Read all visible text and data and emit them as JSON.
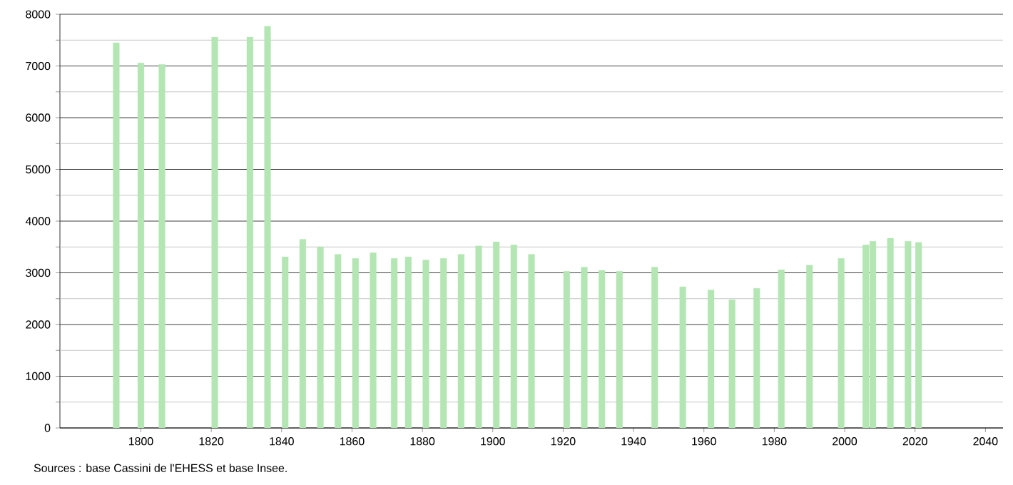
{
  "chart_data": {
    "type": "bar",
    "color": "#b3e6b3",
    "x": [
      1793,
      1800,
      1806,
      1821,
      1831,
      1836,
      1841,
      1846,
      1851,
      1856,
      1861,
      1866,
      1872,
      1876,
      1881,
      1886,
      1891,
      1896,
      1901,
      1906,
      1911,
      1921,
      1926,
      1931,
      1936,
      1946,
      1954,
      1962,
      1968,
      1975,
      1982,
      1990,
      1999,
      2006,
      2008,
      2013,
      2018,
      2021
    ],
    "values": [
      7450,
      7060,
      7030,
      7560,
      7560,
      7770,
      3310,
      3650,
      3500,
      3360,
      3280,
      3390,
      3280,
      3310,
      3250,
      3280,
      3360,
      3520,
      3600,
      3540,
      3360,
      3030,
      3110,
      3050,
      3030,
      3110,
      2730,
      2670,
      2480,
      2700,
      3060,
      3150,
      3280,
      3540,
      3610,
      3670,
      3610,
      3590
    ],
    "xlim": [
      1777,
      2045
    ],
    "xticks": [
      1800,
      1820,
      1840,
      1860,
      1880,
      1900,
      1920,
      1940,
      1960,
      1980,
      2000,
      2020,
      2040
    ],
    "ylim": [
      0,
      8000
    ],
    "yticks": [
      0,
      {
        "value": 500,
        "label": null
      },
      1000,
      {
        "value": 1500,
        "label": null
      },
      2000,
      {
        "value": 2500,
        "label": null
      },
      3000,
      {
        "value": 3500,
        "label": null
      },
      4000,
      {
        "value": 4500,
        "label": null
      },
      5000,
      {
        "value": 5500,
        "label": null
      },
      6000,
      {
        "value": 6500,
        "label": null
      },
      7000,
      {
        "value": 7500,
        "label": null
      },
      8000
    ],
    "grid": "y",
    "annotations": [
      "Sources : base Cassini de l'EHESS et base Insee."
    ]
  }
}
